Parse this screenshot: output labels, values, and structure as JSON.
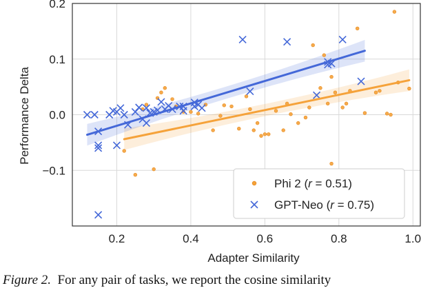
{
  "chart_data": {
    "type": "scatter",
    "xlabel": "Adapter Similarity",
    "ylabel": "Performance Delta",
    "xlim": [
      0.08,
      1.02
    ],
    "ylim": [
      -0.2,
      0.2
    ],
    "xticks": [
      0.2,
      0.4,
      0.6,
      0.8,
      1.0
    ],
    "xtick_labels": [
      "0.2",
      "0.4",
      "0.6",
      "0.8",
      "1.0"
    ],
    "yticks": [
      -0.1,
      0.0,
      0.1,
      0.2
    ],
    "ytick_labels": [
      "−0.1",
      "0.0",
      "0.1",
      "0.2"
    ],
    "grid": true,
    "legend_position": "bottom-right",
    "series": [
      {
        "name": "Phi 2",
        "legend_label": "Phi 2",
        "legend_r": "0.51",
        "color": "#f5a23a",
        "marker": "circle",
        "regression": {
          "x": [
            0.22,
            0.99
          ],
          "y": [
            -0.044,
            0.062
          ]
        },
        "points": [
          [
            0.22,
            -0.065
          ],
          [
            0.25,
            -0.108
          ],
          [
            0.27,
            0.01
          ],
          [
            0.28,
            0.018
          ],
          [
            0.3,
            -0.098
          ],
          [
            0.31,
            0.03
          ],
          [
            0.32,
            0.04
          ],
          [
            0.33,
            0.048
          ],
          [
            0.35,
            0.028
          ],
          [
            0.36,
            0.015
          ],
          [
            0.38,
            0.005
          ],
          [
            0.4,
            0.005
          ],
          [
            0.42,
            0.002
          ],
          [
            0.44,
            0.018
          ],
          [
            0.46,
            -0.028
          ],
          [
            0.48,
            -0.002
          ],
          [
            0.49,
            0.017
          ],
          [
            0.51,
            0.015
          ],
          [
            0.53,
            -0.025
          ],
          [
            0.55,
            0.033
          ],
          [
            0.56,
            0.01
          ],
          [
            0.57,
            -0.028
          ],
          [
            0.58,
            -0.015
          ],
          [
            0.59,
            -0.038
          ],
          [
            0.6,
            -0.035
          ],
          [
            0.61,
            -0.035
          ],
          [
            0.63,
            0.007
          ],
          [
            0.65,
            -0.028
          ],
          [
            0.66,
            0.02
          ],
          [
            0.67,
            0.001
          ],
          [
            0.69,
            -0.015
          ],
          [
            0.71,
            -0.005
          ],
          [
            0.72,
            0.013
          ],
          [
            0.73,
            0.125
          ],
          [
            0.75,
            0.048
          ],
          [
            0.76,
            0.107
          ],
          [
            0.77,
            0.02
          ],
          [
            0.78,
            0.068
          ],
          [
            0.78,
            -0.088
          ],
          [
            0.79,
            0.04
          ],
          [
            0.81,
            0.013
          ],
          [
            0.82,
            0.02
          ],
          [
            0.83,
            0.043
          ],
          [
            0.85,
            0.155
          ],
          [
            0.87,
            0.003
          ],
          [
            0.9,
            0.04
          ],
          [
            0.91,
            0.043
          ],
          [
            0.93,
            0.002
          ],
          [
            0.94,
            0.0
          ],
          [
            0.95,
            0.185
          ],
          [
            0.96,
            0.058
          ],
          [
            0.99,
            0.047
          ]
        ]
      },
      {
        "name": "GPT-Neo",
        "legend_label": "GPT-Neo",
        "legend_r": "0.75",
        "color": "#4468d8",
        "marker": "x",
        "regression": {
          "x": [
            0.12,
            0.87
          ],
          "y": [
            -0.036,
            0.115
          ]
        },
        "points": [
          [
            0.12,
            0.0
          ],
          [
            0.14,
            0.0
          ],
          [
            0.15,
            -0.03
          ],
          [
            0.15,
            -0.055
          ],
          [
            0.15,
            -0.06
          ],
          [
            0.15,
            -0.18
          ],
          [
            0.18,
            0.0
          ],
          [
            0.19,
            0.007
          ],
          [
            0.2,
            0.005
          ],
          [
            0.2,
            -0.055
          ],
          [
            0.21,
            0.012
          ],
          [
            0.22,
            0.0
          ],
          [
            0.23,
            -0.018
          ],
          [
            0.25,
            0.005
          ],
          [
            0.26,
            0.013
          ],
          [
            0.27,
            -0.008
          ],
          [
            0.28,
            0.012
          ],
          [
            0.28,
            -0.015
          ],
          [
            0.29,
            0.003
          ],
          [
            0.3,
            0.005
          ],
          [
            0.31,
            0.008
          ],
          [
            0.32,
            0.023
          ],
          [
            0.33,
            0.01
          ],
          [
            0.34,
            0.016
          ],
          [
            0.35,
            0.01
          ],
          [
            0.37,
            0.015
          ],
          [
            0.38,
            0.015
          ],
          [
            0.38,
            0.007
          ],
          [
            0.41,
            0.022
          ],
          [
            0.41,
            0.015
          ],
          [
            0.42,
            0.018
          ],
          [
            0.43,
            0.012
          ],
          [
            0.54,
            0.135
          ],
          [
            0.56,
            0.042
          ],
          [
            0.66,
            0.131
          ],
          [
            0.74,
            0.035
          ],
          [
            0.77,
            0.095
          ],
          [
            0.77,
            0.09
          ],
          [
            0.78,
            0.092
          ],
          [
            0.81,
            0.135
          ],
          [
            0.86,
            0.06
          ]
        ]
      }
    ]
  },
  "caption": {
    "figure_label": "Figure 2.",
    "text": "For any pair of tasks, we report the cosine similarity"
  }
}
